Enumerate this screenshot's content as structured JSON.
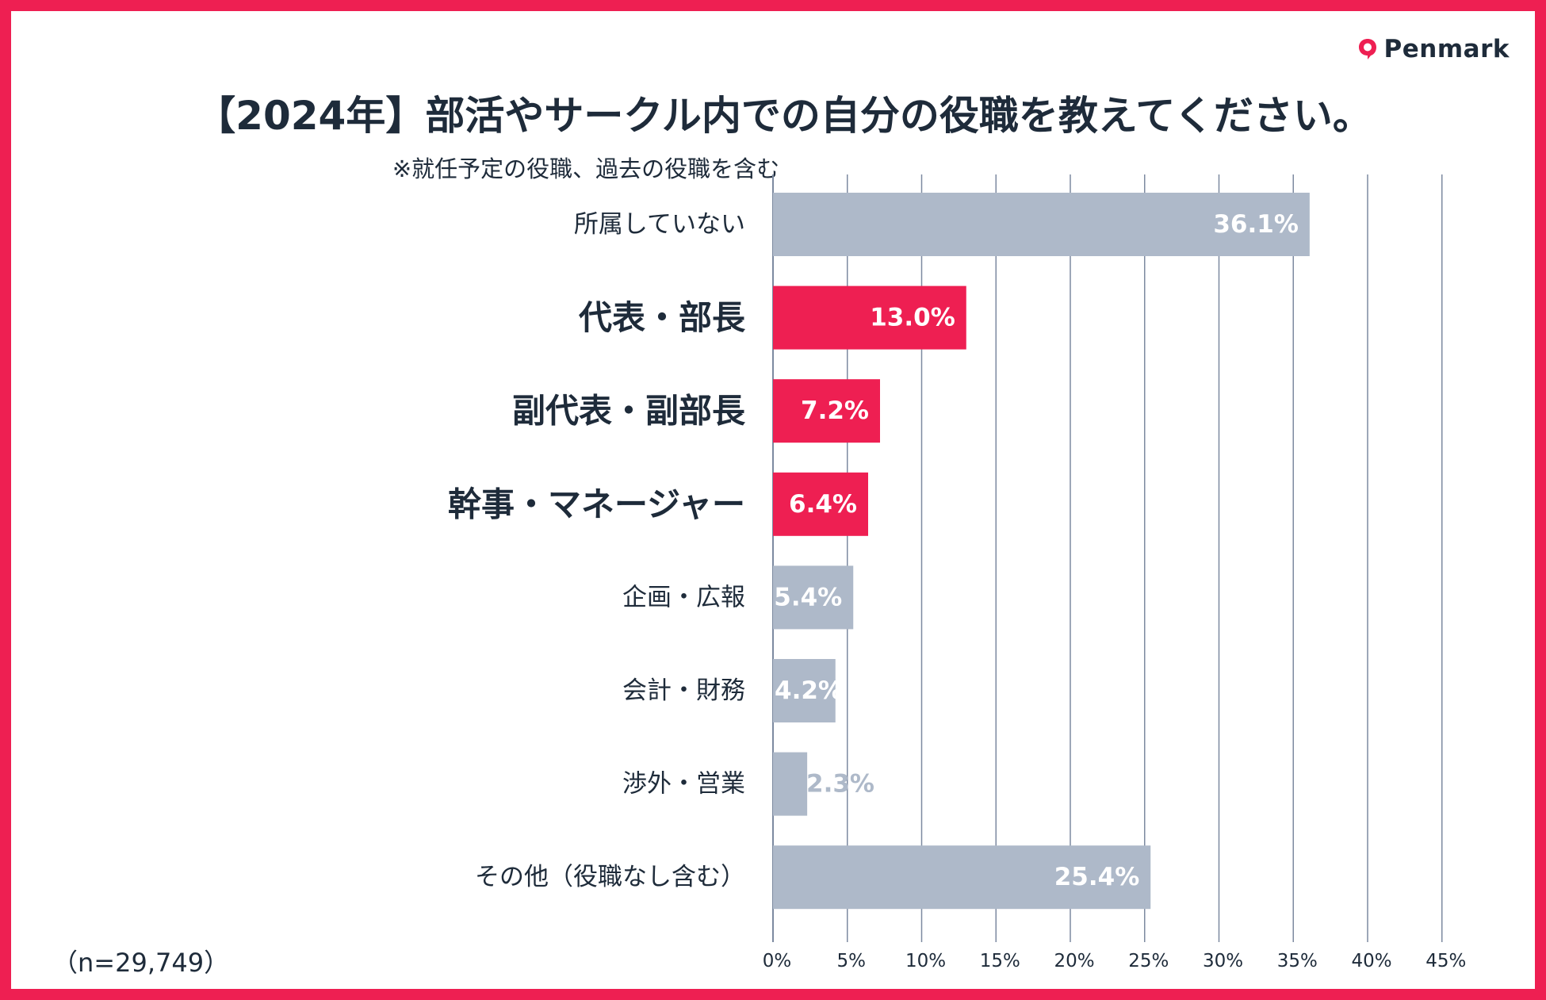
{
  "brand": {
    "name": "Penmark",
    "icon": "penmark-logo-icon",
    "color": "#ee1f52"
  },
  "title": "【2024年】部活やサークル内での自分の役職を教えてください。",
  "subtitle": "※就任予定の役職、過去の役職を含む",
  "sample_size": "（n=29,749）",
  "chart_data": {
    "type": "bar",
    "orientation": "horizontal",
    "title": "【2024年】部活やサークル内での自分の役職を教えてください。",
    "subtitle": "※就任予定の役職、過去の役職を含む",
    "xlabel": "",
    "ylabel": "",
    "xlim": [
      0,
      45
    ],
    "x_ticks": [
      0,
      5,
      10,
      15,
      20,
      25,
      30,
      35,
      40,
      45
    ],
    "x_tick_labels": [
      "0%",
      "5%",
      "10%",
      "15%",
      "20%",
      "25%",
      "30%",
      "35%",
      "40%",
      "45%"
    ],
    "grid": true,
    "categories": [
      "所属していない",
      "代表・部長",
      "副代表・副部長",
      "幹事・マネージャー",
      "企画・広報",
      "会計・財務",
      "渉外・営業",
      "その他（役職なし含む）"
    ],
    "values": [
      36.1,
      13.0,
      7.2,
      6.4,
      5.4,
      4.2,
      2.3,
      25.4
    ],
    "value_labels": [
      "36.1%",
      "13.0%",
      "7.2%",
      "6.4%",
      "5.4%",
      "4.2%",
      "2.3%",
      "25.4%"
    ],
    "highlighted": [
      false,
      true,
      true,
      true,
      false,
      false,
      false,
      false
    ],
    "colors": {
      "highlight": "#ee1f52",
      "default": "#aeb9c9",
      "grid": "#7d8aa0",
      "text": "#1e2b3a",
      "label": "#ffffff"
    }
  }
}
